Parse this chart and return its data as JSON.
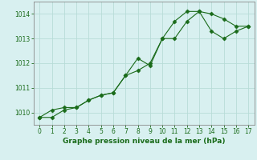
{
  "line1_x": [
    0,
    1,
    2,
    3,
    4,
    5,
    6,
    7,
    8,
    9,
    10,
    11,
    12,
    13,
    14,
    15,
    16,
    17
  ],
  "line1_y": [
    1009.8,
    1009.8,
    1010.1,
    1010.2,
    1010.5,
    1010.7,
    1010.8,
    1011.5,
    1012.2,
    1011.9,
    1013.0,
    1013.7,
    1014.1,
    1014.1,
    1014.0,
    1013.8,
    1013.5,
    1013.5
  ],
  "line2_x": [
    0,
    1,
    2,
    3,
    4,
    5,
    6,
    7,
    8,
    9,
    10,
    11,
    12,
    13,
    14,
    15,
    16,
    17
  ],
  "line2_y": [
    1009.8,
    1010.1,
    1010.2,
    1010.2,
    1010.5,
    1010.7,
    1010.8,
    1011.5,
    1011.7,
    1012.0,
    1013.0,
    1013.0,
    1013.7,
    1014.1,
    1013.3,
    1013.0,
    1013.3,
    1013.5
  ],
  "line_color": "#1a6b1a",
  "marker_color": "#1a6b1a",
  "bg_color": "#d8f0f0",
  "grid_color": "#b8dcd8",
  "label_color": "#1a6b1a",
  "xlabel": "Graphe pression niveau de la mer (hPa)",
  "ylim": [
    1009.5,
    1014.5
  ],
  "xlim": [
    -0.5,
    17.5
  ],
  "yticks": [
    1010,
    1011,
    1012,
    1013,
    1014
  ],
  "xticks": [
    0,
    1,
    2,
    3,
    4,
    5,
    6,
    7,
    8,
    9,
    10,
    11,
    12,
    13,
    14,
    15,
    16,
    17
  ],
  "tick_fontsize": 5.5,
  "xlabel_fontsize": 6.5
}
